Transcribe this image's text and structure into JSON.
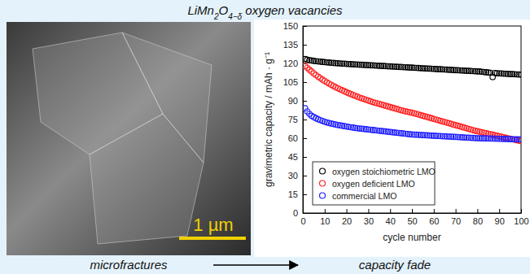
{
  "figure": {
    "title": "LiMn2O4−δ oxygen vacancies",
    "scale_bar": "1 µm",
    "caption_left": "microfractures",
    "caption_right": "capacity fade"
  },
  "chart_data": {
    "type": "scatter",
    "x_label": "cycle number",
    "y_label": "gravimetric capacity / mAh · g⁻¹",
    "x": [
      1,
      2,
      3,
      4,
      5,
      6,
      7,
      8,
      9,
      10,
      11,
      12,
      13,
      14,
      15,
      16,
      17,
      18,
      19,
      20,
      21,
      22,
      23,
      24,
      25,
      26,
      27,
      28,
      29,
      30,
      31,
      32,
      33,
      34,
      35,
      36,
      37,
      38,
      39,
      40,
      41,
      42,
      43,
      44,
      45,
      46,
      47,
      48,
      49,
      50,
      51,
      52,
      53,
      54,
      55,
      56,
      57,
      58,
      59,
      60,
      61,
      62,
      63,
      64,
      65,
      66,
      67,
      68,
      69,
      70,
      71,
      72,
      73,
      74,
      75,
      76,
      77,
      78,
      79,
      80,
      81,
      82,
      83,
      84,
      85,
      86,
      87,
      88,
      89,
      90,
      91,
      92,
      93,
      94,
      95,
      96,
      97,
      98,
      99,
      100
    ],
    "series": [
      {
        "name": "oxygen stoichiometric LMO",
        "color": "#000000",
        "marker": "open-circle",
        "values": [
          123.5,
          123,
          122.5,
          122.3,
          122,
          121.8,
          121.6,
          121.4,
          121.2,
          121,
          120.8,
          120.7,
          120.5,
          120.4,
          120.2,
          120.1,
          120,
          119.8,
          119.7,
          119.6,
          119.5,
          119.4,
          119.3,
          119.2,
          119.1,
          119,
          118.9,
          118.8,
          118.7,
          118.6,
          118.5,
          118.4,
          118.3,
          118.2,
          118.1,
          118,
          117.9,
          117.8,
          117.7,
          117.6,
          117.5,
          117.4,
          117.3,
          117.2,
          117.1,
          117,
          116.9,
          116.8,
          116.7,
          116.6,
          116.5,
          116.4,
          116.3,
          116.2,
          116.1,
          116,
          115.9,
          115.8,
          115.7,
          115.6,
          115.5,
          115.4,
          115.3,
          115.2,
          115.1,
          115,
          114.9,
          114.8,
          114.7,
          114.6,
          114.5,
          114.4,
          114.3,
          114.2,
          114.1,
          114,
          113.9,
          113.8,
          113.7,
          113.6,
          113.5,
          113.3,
          113.1,
          112.9,
          112.7,
          112.5,
          109,
          112.3,
          112.1,
          112,
          111.9,
          111.8,
          111.7,
          111.6,
          111.5,
          111.4,
          111.3,
          111.2,
          111.1,
          111
        ]
      },
      {
        "name": "oxygen deficient LMO",
        "color": "#ff2020",
        "marker": "open-circle",
        "values": [
          118,
          116.5,
          115,
          113.5,
          112,
          110.7,
          109.4,
          108.2,
          107,
          105.9,
          104.8,
          103.8,
          102.8,
          101.9,
          101,
          100.1,
          99.3,
          98.5,
          97.7,
          96.9,
          96.1,
          95.4,
          94.7,
          94,
          93.3,
          92.6,
          92,
          91.4,
          90.8,
          90.2,
          89.6,
          89,
          88.5,
          88,
          87.5,
          87,
          86.5,
          86,
          85.5,
          85,
          84.5,
          84,
          83.5,
          83,
          82.5,
          82,
          81.6,
          81.2,
          80.8,
          80.4,
          80,
          79.5,
          79,
          78.5,
          78,
          77.5,
          77,
          76.5,
          76,
          75.5,
          75,
          74.5,
          74,
          73.5,
          73,
          72.5,
          72,
          71.5,
          71,
          70.5,
          70,
          69.5,
          69,
          68.5,
          68,
          67.5,
          67,
          66.5,
          66,
          65.6,
          65.2,
          64.8,
          64.4,
          64,
          63.6,
          63.2,
          62.8,
          62.4,
          62,
          61.6,
          61.2,
          60.8,
          60.4,
          60,
          59.6,
          59.2,
          58.8,
          58.4,
          58,
          57.6
        ]
      },
      {
        "name": "commercial LMO",
        "color": "#2020ff",
        "marker": "open-circle",
        "values": [
          84,
          81.5,
          79.5,
          78,
          77,
          76,
          75.2,
          74.5,
          73.8,
          73.2,
          72.7,
          72.2,
          71.8,
          71.4,
          71,
          70.6,
          70.3,
          70,
          69.7,
          69.4,
          69.1,
          68.8,
          68.5,
          68.2,
          68,
          67.8,
          67.6,
          67.4,
          67.2,
          67,
          66.8,
          66.6,
          66.4,
          66.2,
          66,
          65.8,
          65.6,
          65.4,
          65.2,
          65,
          64.8,
          64.6,
          64.4,
          64.2,
          64,
          63.8,
          63.6,
          63.4,
          63.2,
          63,
          62.9,
          62.8,
          62.7,
          62.6,
          62.5,
          62.4,
          62.3,
          62.2,
          62.1,
          62,
          61.9,
          61.8,
          61.7,
          61.6,
          61.5,
          61.4,
          61.3,
          61.2,
          61.1,
          61,
          60.9,
          60.8,
          60.7,
          60.6,
          60.5,
          60.4,
          60.3,
          60.2,
          60.1,
          60,
          60,
          59.9,
          59.9,
          59.8,
          59.8,
          59.7,
          59.7,
          59.6,
          59.6,
          59.5,
          59.5,
          59.4,
          59.4,
          59.3,
          59.3,
          59.2,
          59.2,
          59.1,
          59.1,
          59
        ]
      }
    ],
    "xlim": [
      0,
      100
    ],
    "xticks": [
      0,
      10,
      20,
      30,
      40,
      50,
      60,
      70,
      80,
      90,
      100
    ],
    "ylim": [
      0,
      150
    ],
    "yticks": [
      0,
      15,
      30,
      45,
      60,
      75,
      90,
      105,
      120,
      135,
      150
    ],
    "grid": false,
    "legend": "lower left"
  }
}
